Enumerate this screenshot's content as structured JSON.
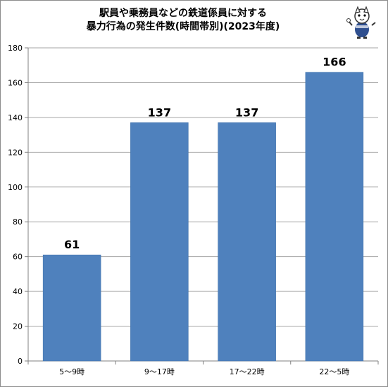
{
  "colors": {
    "bar": "#4f81bd",
    "bar_stroke": "#3b6ea8",
    "axis": "#808080",
    "grid": "#a6a6a6",
    "text": "#000000"
  },
  "icons": {
    "mascot": "cartoon-mascot-icon"
  },
  "chart_data": {
    "type": "bar",
    "title_lines": [
      "駅員や乗務員などの鉄道係員に対する",
      "暴力行為の発生件数(時間帯別)(2023年度)"
    ],
    "categories": [
      "5〜9時",
      "9〜17時",
      "17〜22時",
      "22〜5時"
    ],
    "series": [
      {
        "values": [
          61,
          137,
          137,
          166
        ]
      }
    ],
    "data_labels": [
      "61",
      "137",
      "137",
      "166"
    ],
    "ylim": [
      0,
      180
    ],
    "yticks": [
      0,
      20,
      40,
      60,
      80,
      100,
      120,
      140,
      160,
      180
    ],
    "grid": true,
    "legend": "none",
    "xlabel": "",
    "ylabel": ""
  }
}
